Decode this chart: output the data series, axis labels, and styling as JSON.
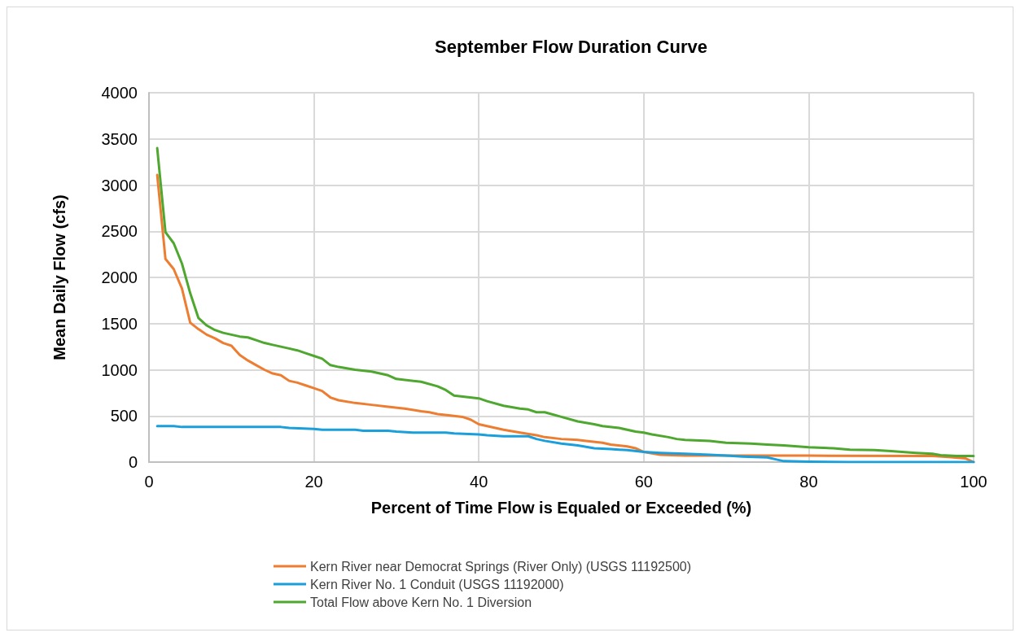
{
  "chart_data": {
    "type": "line",
    "title": "September Flow Duration Curve",
    "xlabel": "Percent of Time Flow is Equaled or Exceeded (%)",
    "ylabel": "Mean Daily Flow (cfs)",
    "xlim": [
      0,
      100
    ],
    "xticks": [
      0,
      20,
      40,
      60,
      80,
      100
    ],
    "ylim": [
      0,
      4000
    ],
    "yticks": [
      0,
      500,
      1000,
      1500,
      2000,
      2500,
      3000,
      3500,
      4000
    ],
    "grid": true,
    "legend": "bottom",
    "marker": "none",
    "line_style": "solid",
    "series": [
      {
        "name": "Kern River near Democrat Springs (River Only) (USGS 11192500)",
        "color": "#ed7d31",
        "x": [
          1,
          2,
          3,
          4,
          5,
          6,
          7,
          8,
          9,
          10,
          11,
          12,
          13,
          14,
          15,
          16,
          17,
          18,
          19,
          20,
          21,
          22,
          23,
          25,
          27,
          29,
          31,
          33,
          34,
          35,
          37,
          38,
          39,
          40,
          41,
          43,
          45,
          47,
          48,
          50,
          52,
          53,
          55,
          56,
          58,
          59,
          60,
          61,
          62,
          65,
          80,
          95,
          97,
          99,
          100
        ],
        "values": [
          3110,
          2200,
          2090,
          1880,
          1510,
          1440,
          1380,
          1340,
          1290,
          1260,
          1160,
          1100,
          1050,
          1000,
          960,
          940,
          880,
          860,
          830,
          800,
          770,
          700,
          670,
          640,
          620,
          600,
          580,
          550,
          540,
          520,
          500,
          490,
          460,
          410,
          390,
          350,
          320,
          290,
          270,
          250,
          240,
          230,
          210,
          190,
          170,
          150,
          110,
          95,
          80,
          70,
          70,
          65,
          55,
          40,
          0
        ]
      },
      {
        "name": "Kern River No. 1 Conduit (USGS 11192000)",
        "color": "#1a9fdb",
        "x": [
          1,
          3,
          4,
          10,
          16,
          17,
          20,
          21,
          25,
          26,
          29,
          30,
          32,
          36,
          37,
          40,
          41,
          43,
          46,
          47,
          48,
          50,
          52,
          54,
          56,
          58,
          60,
          62,
          65,
          68,
          70,
          72,
          75,
          76,
          77,
          80,
          85,
          100
        ],
        "values": [
          390,
          390,
          380,
          380,
          380,
          370,
          360,
          350,
          350,
          340,
          340,
          330,
          320,
          320,
          310,
          300,
          290,
          280,
          280,
          250,
          230,
          200,
          180,
          150,
          140,
          130,
          110,
          100,
          90,
          80,
          70,
          60,
          50,
          30,
          10,
          5,
          0,
          0
        ]
      },
      {
        "name": "Total Flow above Kern No. 1 Diversion",
        "color": "#4ea72e",
        "x": [
          1,
          2,
          3,
          4,
          5,
          6,
          7,
          8,
          9,
          10,
          11,
          12,
          13,
          14,
          15,
          16,
          17,
          18,
          19,
          20,
          21,
          22,
          23,
          25,
          27,
          29,
          30,
          33,
          35,
          36,
          37,
          40,
          41,
          43,
          45,
          46,
          47,
          48,
          50,
          52,
          54,
          55,
          57,
          59,
          60,
          61,
          63,
          64,
          65,
          68,
          70,
          73,
          75,
          77,
          80,
          83,
          85,
          88,
          90,
          93,
          95,
          96,
          98,
          100
        ],
        "values": [
          3400,
          2490,
          2370,
          2150,
          1830,
          1560,
          1480,
          1430,
          1400,
          1380,
          1360,
          1350,
          1320,
          1290,
          1270,
          1250,
          1230,
          1210,
          1180,
          1150,
          1120,
          1050,
          1030,
          1000,
          980,
          940,
          900,
          870,
          820,
          780,
          720,
          690,
          660,
          610,
          580,
          570,
          540,
          540,
          490,
          440,
          410,
          390,
          370,
          330,
          320,
          300,
          270,
          250,
          240,
          230,
          210,
          200,
          190,
          180,
          160,
          150,
          135,
          130,
          120,
          100,
          90,
          75,
          65,
          65
        ]
      }
    ]
  }
}
